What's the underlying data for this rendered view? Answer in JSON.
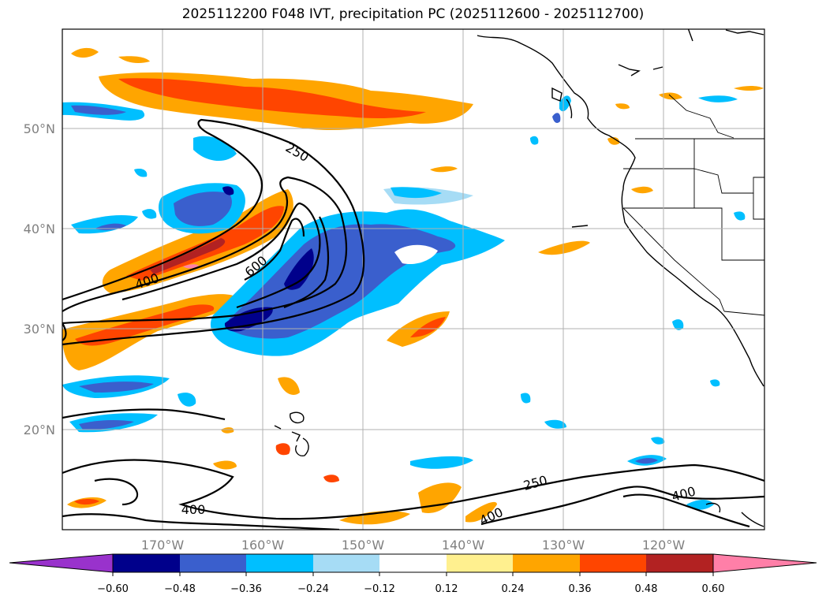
{
  "title": "2025112200 F048 IVT, precipitation PC (2025112600 - 2025112700)",
  "colors": {
    "grid": "#b0b0b0",
    "neg_060": "#9932cc",
    "neg_048": "#00008b",
    "neg_036": "#3a5fcd",
    "neg_024": "#00bfff",
    "neg_012": "#a6dcf5",
    "zero": "#ffffff",
    "pos_012": "#fff08f",
    "pos_024": "#ffa500",
    "pos_036": "#ff4500",
    "pos_048": "#b22222",
    "pos_060": "#ff7fa8"
  },
  "map": {
    "lon_range": [
      -180,
      -110
    ],
    "lat_range": [
      10,
      60
    ],
    "lon_ticks": [
      {
        "value": -170,
        "label": "170°W"
      },
      {
        "value": -160,
        "label": "160°W"
      },
      {
        "value": -150,
        "label": "150°W"
      },
      {
        "value": -140,
        "label": "140°W"
      },
      {
        "value": -130,
        "label": "130°W"
      },
      {
        "value": -120,
        "label": "120°W"
      }
    ],
    "lat_ticks": [
      {
        "value": 50,
        "label": "50°N"
      },
      {
        "value": 40,
        "label": "40°N"
      },
      {
        "value": 30,
        "label": "30°N"
      },
      {
        "value": 20,
        "label": "20°N"
      }
    ],
    "ivt_contour_labels": [
      {
        "text": "250",
        "lon": -156.3,
        "lat": 47.2
      },
      {
        "text": "400",
        "lon": -166.6,
        "lat": 35.5
      },
      {
        "text": "600",
        "lon": -159.5,
        "lat": 37.0
      },
      {
        "text": "250",
        "lon": -132.3,
        "lat": 14.6
      },
      {
        "text": "400",
        "lon": -166.0,
        "lat": 11.9
      },
      {
        "text": "400",
        "lon": -134.1,
        "lat": 11.5
      },
      {
        "text": "400",
        "lon": -119.8,
        "lat": 13.6
      }
    ]
  },
  "colorbar": {
    "levels": [
      "−0.60",
      "−0.48",
      "−0.36",
      "−0.24",
      "−0.12",
      "0.12",
      "0.24",
      "0.36",
      "0.48",
      "0.60"
    ],
    "bins": [
      "#00008b",
      "#3a5fcd",
      "#00bfff",
      "#a6dcf5",
      "#ffffff",
      "#fff08f",
      "#ffa500",
      "#ff4500",
      "#b22222"
    ],
    "under_color": "#9932cc",
    "over_color": "#ff7fa8"
  }
}
